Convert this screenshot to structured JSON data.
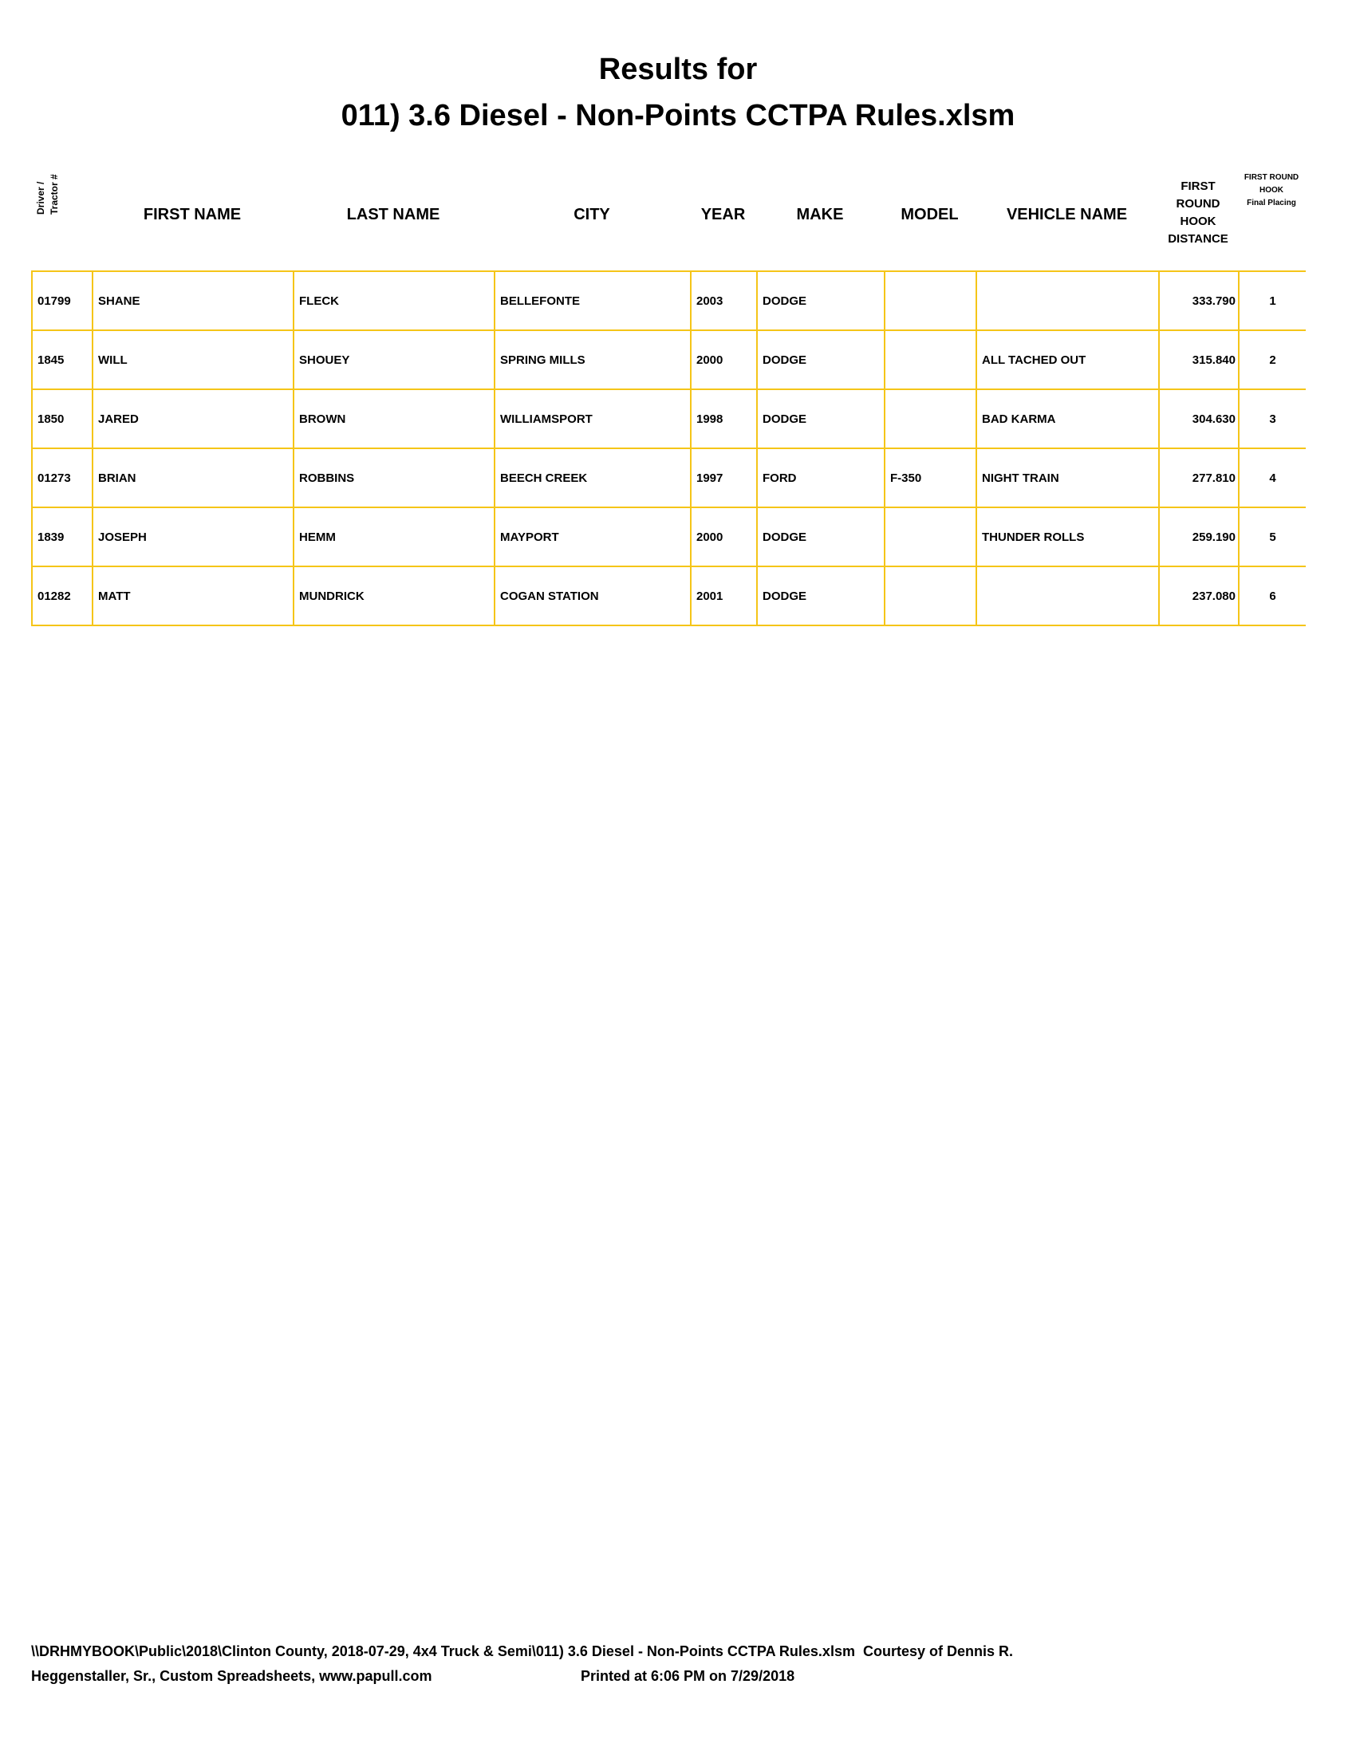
{
  "title": {
    "line1": "Results for",
    "line2": "011) 3.6 Diesel - Non-Points CCTPA Rules.xlsm"
  },
  "headers": {
    "driver_line1": "Driver /",
    "driver_line2": "Tractor #",
    "first_name": "FIRST NAME",
    "last_name": "LAST NAME",
    "city": "CITY",
    "year": "YEAR",
    "make": "MAKE",
    "model": "MODEL",
    "vehicle_name": "VEHICLE NAME",
    "distance": [
      "FIRST",
      "ROUND",
      "HOOK",
      "DISTANCE"
    ],
    "placing": [
      "FIRST ROUND",
      "HOOK",
      "Final Placing"
    ]
  },
  "rows": [
    {
      "id": "01799",
      "first": "SHANE",
      "last": "FLECK",
      "city": "BELLEFONTE",
      "year": "2003",
      "make": "DODGE",
      "model": "",
      "vehicle": "",
      "distance": "333.790",
      "place": "1"
    },
    {
      "id": "1845",
      "first": "WILL",
      "last": "SHOUEY",
      "city": "SPRING MILLS",
      "year": "2000",
      "make": "DODGE",
      "model": "",
      "vehicle": "ALL TACHED OUT",
      "distance": "315.840",
      "place": "2"
    },
    {
      "id": "1850",
      "first": "JARED",
      "last": "BROWN",
      "city": "WILLIAMSPORT",
      "year": "1998",
      "make": "DODGE",
      "model": "",
      "vehicle": "BAD KARMA",
      "distance": "304.630",
      "place": "3"
    },
    {
      "id": "01273",
      "first": "BRIAN",
      "last": "ROBBINS",
      "city": "BEECH CREEK",
      "year": "1997",
      "make": "FORD",
      "model": "F-350",
      "vehicle": "NIGHT TRAIN",
      "distance": "277.810",
      "place": "4"
    },
    {
      "id": "1839",
      "first": "JOSEPH",
      "last": "HEMM",
      "city": "MAYPORT",
      "year": "2000",
      "make": "DODGE",
      "model": "",
      "vehicle": "THUNDER ROLLS",
      "distance": "259.190",
      "place": "5"
    },
    {
      "id": "01282",
      "first": "MATT",
      "last": "MUNDRICK",
      "city": "COGAN STATION",
      "year": "2001",
      "make": "DODGE",
      "model": "",
      "vehicle": "",
      "distance": "237.080",
      "place": "6"
    }
  ],
  "footer": {
    "line1": "\\\\DRHMYBOOK\\Public\\2018\\Clinton County, 2018-07-29, 4x4 Truck & Semi\\011) 3.6 Diesel - Non-Points CCTPA Rules.xlsm  Courtesy of Dennis R.",
    "line2": "Heggenstaller, Sr., Custom Spreadsheets, www.papull.com",
    "printed": "Printed at 6:06 PM on 7/29/2018"
  },
  "colors": {
    "grid": "#f5c518"
  }
}
